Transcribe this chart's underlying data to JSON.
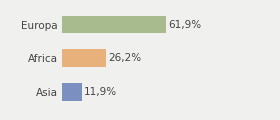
{
  "categories": [
    "Europa",
    "Africa",
    "Asia"
  ],
  "values": [
    61.9,
    26.2,
    11.9
  ],
  "labels": [
    "61,9%",
    "26,2%",
    "11,9%"
  ],
  "bar_colors": [
    "#a8bb8e",
    "#e8b07a",
    "#7b8fc0"
  ],
  "background_color": "#f0f0ee",
  "xlim": [
    0,
    100
  ],
  "bar_height": 0.52,
  "label_fontsize": 7.5,
  "tick_fontsize": 7.5
}
